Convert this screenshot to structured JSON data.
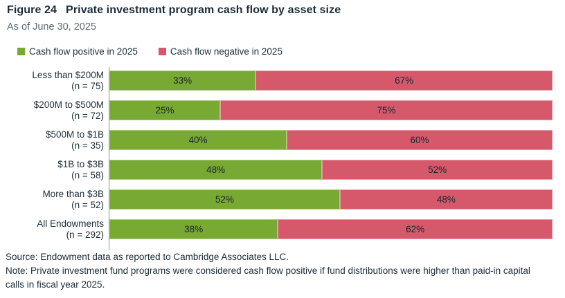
{
  "figure": {
    "title_prefix": "Figure 24",
    "title": "Private investment program cash flow by asset size",
    "subtitle": "As of June 30, 2025"
  },
  "legend": [
    {
      "label": "Cash flow positive in 2025",
      "color": "#77A933"
    },
    {
      "label": "Cash flow negative in 2025",
      "color": "#D5596B"
    }
  ],
  "chart_data": {
    "type": "bar",
    "orientation": "horizontal",
    "stacked": true,
    "unit": "%",
    "xlim": [
      0,
      100
    ],
    "categories": [
      "Less than $200M",
      "$200M to $500M",
      "$500M to $1B",
      "$1B to $3B",
      "More than $3B",
      "All Endowments"
    ],
    "category_sublabels": [
      "(n = 75)",
      "(n = 72)",
      "(n = 35)",
      "(n = 58)",
      "(n = 52)",
      "(n = 292)"
    ],
    "series": [
      {
        "name": "Cash flow positive in 2025",
        "color": "#77A933",
        "values": [
          33,
          25,
          40,
          48,
          52,
          38
        ]
      },
      {
        "name": "Cash flow negative in 2025",
        "color": "#D5596B",
        "values": [
          67,
          75,
          60,
          52,
          48,
          62
        ]
      }
    ],
    "value_labels": true,
    "axis_line_color": "#8F8F8F"
  },
  "footer": {
    "source": "Source: Endowment data as reported to Cambridge Associates LLC.",
    "note": "Note: Private investment fund programs were considered cash flow positive if fund distributions were higher than paid-in capital calls in fiscal year 2025."
  }
}
